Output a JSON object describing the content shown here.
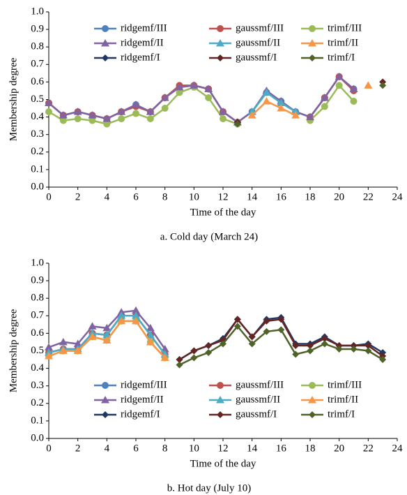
{
  "chart_data": [
    {
      "type": "line",
      "caption": "a. Cold day (March 24)",
      "xlabel": "Time of the day",
      "ylabel": "Membership degree",
      "legend": "upper",
      "x": [
        0,
        1,
        2,
        3,
        4,
        5,
        6,
        7,
        8,
        9,
        10,
        11,
        12,
        13,
        14,
        15,
        16,
        17,
        18,
        19,
        20,
        21,
        22,
        23
      ],
      "xlim": [
        0,
        24
      ],
      "xticks": [
        0,
        2,
        4,
        6,
        8,
        10,
        12,
        14,
        16,
        18,
        20,
        22,
        24
      ],
      "ylim": [
        0,
        1
      ],
      "yticks": [
        {
          "value": 0,
          "label": "0.0"
        },
        0.1,
        0.2,
        0.3,
        0.4,
        0.5,
        0.6,
        0.7,
        0.8,
        0.9,
        {
          "value": 1,
          "label": "1.0"
        }
      ],
      "series": [
        {
          "name": "ridgemf/III",
          "color": "#4f81bd",
          "marker": "circle",
          "values": [
            0.48,
            0.41,
            0.43,
            0.41,
            0.39,
            0.43,
            0.47,
            0.43,
            0.51,
            0.57,
            0.58,
            0.56,
            0.43,
            0.37,
            0.43,
            0.54,
            0.49,
            0.43,
            0.4,
            0.51,
            0.63,
            0.56,
            null,
            null
          ]
        },
        {
          "name": "gaussmf/III",
          "color": "#c0504d",
          "marker": "circle",
          "values": [
            0.48,
            0.41,
            0.43,
            0.41,
            0.39,
            0.43,
            0.46,
            0.43,
            0.51,
            0.58,
            0.58,
            0.56,
            0.43,
            0.37,
            null,
            null,
            null,
            null,
            0.4,
            0.51,
            0.63,
            0.55,
            null,
            null
          ]
        },
        {
          "name": "trimf/III",
          "color": "#9bbb59",
          "marker": "circle",
          "values": [
            0.43,
            0.38,
            0.39,
            0.38,
            0.36,
            0.39,
            0.42,
            0.39,
            0.45,
            0.54,
            0.57,
            0.51,
            0.39,
            0.36,
            null,
            null,
            null,
            null,
            0.38,
            0.46,
            0.58,
            0.49,
            null,
            null
          ]
        },
        {
          "name": "ridgemf/II",
          "color": "#8064a2",
          "marker": "triangle",
          "values": [
            0.48,
            0.41,
            0.43,
            0.41,
            0.39,
            0.43,
            0.47,
            0.43,
            0.51,
            0.57,
            0.58,
            0.56,
            0.43,
            0.37,
            0.43,
            0.55,
            0.49,
            0.43,
            0.4,
            0.51,
            0.63,
            0.56,
            null,
            null
          ]
        },
        {
          "name": "gaussmf/II",
          "color": "#4bacc6",
          "marker": "triangle",
          "values": [
            null,
            null,
            null,
            null,
            null,
            null,
            null,
            null,
            null,
            null,
            null,
            null,
            null,
            null,
            0.43,
            0.54,
            0.48,
            0.43,
            null,
            null,
            null,
            null,
            null,
            null
          ]
        },
        {
          "name": "trimf/II",
          "color": "#f79646",
          "marker": "triangle",
          "values": [
            null,
            null,
            null,
            null,
            null,
            null,
            null,
            null,
            null,
            null,
            null,
            null,
            null,
            null,
            0.41,
            0.49,
            0.45,
            0.41,
            null,
            null,
            null,
            null,
            0.58,
            null
          ]
        },
        {
          "name": "ridgemf/I",
          "color": "#1f3864",
          "marker": "diamond",
          "values": [
            null,
            null,
            null,
            null,
            null,
            null,
            null,
            null,
            null,
            null,
            null,
            null,
            null,
            0.37,
            null,
            null,
            null,
            null,
            null,
            null,
            null,
            null,
            null,
            null
          ]
        },
        {
          "name": "gaussmf/I",
          "color": "#632523",
          "marker": "diamond",
          "values": [
            null,
            null,
            null,
            null,
            null,
            null,
            null,
            null,
            null,
            null,
            null,
            null,
            null,
            0.37,
            null,
            null,
            null,
            null,
            null,
            null,
            null,
            null,
            null,
            0.6
          ]
        },
        {
          "name": "trimf/I",
          "color": "#4f6228",
          "marker": "diamond",
          "values": [
            null,
            null,
            null,
            null,
            null,
            null,
            null,
            null,
            null,
            null,
            null,
            null,
            null,
            0.36,
            null,
            null,
            null,
            null,
            null,
            null,
            null,
            null,
            null,
            0.58
          ]
        }
      ]
    },
    {
      "type": "line",
      "caption": "b. Hot day (July 10)",
      "xlabel": "Time of the day",
      "ylabel": "Membership degree",
      "legend": "lower",
      "x": [
        0,
        1,
        2,
        3,
        4,
        5,
        6,
        7,
        8,
        9,
        10,
        11,
        12,
        13,
        14,
        15,
        16,
        17,
        18,
        19,
        20,
        21,
        22,
        23
      ],
      "xlim": [
        0,
        24
      ],
      "xticks": [
        0,
        2,
        4,
        6,
        8,
        10,
        12,
        14,
        16,
        18,
        20,
        22,
        24
      ],
      "ylim": [
        0,
        1
      ],
      "yticks": [
        {
          "value": 0,
          "label": "0.0"
        },
        0.1,
        0.2,
        0.3,
        0.4,
        0.5,
        0.6,
        0.7,
        0.8,
        0.9,
        {
          "value": 1,
          "label": "1.0"
        }
      ],
      "series": [
        {
          "name": "ridgemf/III",
          "color": "#4f81bd",
          "marker": "circle",
          "values": [
            0.49,
            0.51,
            0.51,
            0.6,
            0.59,
            0.7,
            0.7,
            0.59,
            0.48,
            null,
            null,
            null,
            null,
            null,
            null,
            null,
            null,
            null,
            null,
            null,
            null,
            null,
            null,
            null
          ]
        },
        {
          "name": "gaussmf/III",
          "color": "#c0504d",
          "marker": "circle",
          "values": [
            0.49,
            0.51,
            0.51,
            0.6,
            0.59,
            0.7,
            0.7,
            0.59,
            0.48,
            null,
            null,
            null,
            null,
            null,
            null,
            null,
            null,
            null,
            null,
            null,
            null,
            null,
            null,
            null
          ]
        },
        {
          "name": "trimf/III",
          "color": "#9bbb59",
          "marker": "circle",
          "values": [
            0.47,
            0.5,
            0.5,
            0.58,
            0.56,
            0.67,
            0.67,
            0.55,
            0.46,
            null,
            null,
            null,
            null,
            null,
            null,
            null,
            null,
            null,
            null,
            null,
            null,
            null,
            null,
            null
          ]
        },
        {
          "name": "ridgemf/II",
          "color": "#8064a2",
          "marker": "triangle",
          "values": [
            0.52,
            0.55,
            0.54,
            0.64,
            0.63,
            0.72,
            0.73,
            0.63,
            0.51,
            null,
            null,
            null,
            null,
            null,
            null,
            null,
            null,
            null,
            null,
            null,
            null,
            null,
            null,
            null
          ]
        },
        {
          "name": "gaussmf/II",
          "color": "#4bacc6",
          "marker": "triangle",
          "values": [
            0.49,
            0.51,
            0.51,
            0.6,
            0.59,
            0.7,
            0.7,
            0.59,
            0.48,
            null,
            null,
            null,
            null,
            null,
            null,
            null,
            null,
            null,
            null,
            null,
            null,
            null,
            null,
            null
          ]
        },
        {
          "name": "trimf/II",
          "color": "#f79646",
          "marker": "triangle",
          "values": [
            0.47,
            0.5,
            0.5,
            0.58,
            0.56,
            0.67,
            0.67,
            0.55,
            0.46,
            null,
            null,
            null,
            null,
            null,
            null,
            null,
            null,
            null,
            null,
            null,
            null,
            null,
            null,
            null
          ]
        },
        {
          "name": "ridgemf/I",
          "color": "#1f3864",
          "marker": "diamond",
          "values": [
            null,
            null,
            null,
            null,
            null,
            null,
            null,
            null,
            null,
            0.45,
            0.5,
            0.53,
            0.57,
            0.68,
            0.58,
            0.68,
            0.69,
            0.54,
            0.54,
            0.58,
            0.53,
            0.53,
            0.54,
            0.49
          ]
        },
        {
          "name": "gaussmf/I",
          "color": "#632523",
          "marker": "diamond",
          "values": [
            null,
            null,
            null,
            null,
            null,
            null,
            null,
            null,
            null,
            0.45,
            0.5,
            0.53,
            0.56,
            0.68,
            0.58,
            0.67,
            0.68,
            0.53,
            0.53,
            0.57,
            0.53,
            0.53,
            0.53,
            0.47
          ]
        },
        {
          "name": "trimf/I",
          "color": "#4f6228",
          "marker": "diamond",
          "values": [
            null,
            null,
            null,
            null,
            null,
            null,
            null,
            null,
            null,
            0.42,
            0.46,
            0.49,
            0.54,
            0.64,
            0.54,
            0.61,
            0.62,
            0.48,
            0.5,
            0.54,
            0.51,
            0.51,
            0.5,
            0.45
          ]
        }
      ]
    }
  ]
}
